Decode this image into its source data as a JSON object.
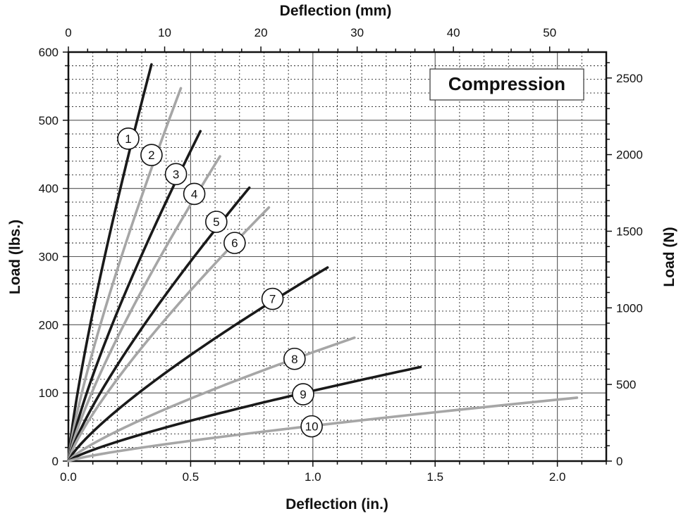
{
  "chart_data": {
    "type": "line",
    "legend_label": "Compression",
    "legend_position": "top-right",
    "xlabel_bottom": "Deflection (in.)",
    "xlabel_top": "Deflection (mm)",
    "ylabel_left": "Load (lbs.)",
    "ylabel_right": "Load (N)",
    "xlim_in": [
      0,
      2.2
    ],
    "ylim_lbs": [
      0,
      600
    ],
    "x_ticks_in": [
      "0.0",
      "0.5",
      "1.0",
      "1.5",
      "2.0"
    ],
    "y_ticks_lbs": [
      "0",
      "100",
      "200",
      "300",
      "400",
      "500",
      "600"
    ],
    "x_ticks_mm": [
      "0",
      "10",
      "20",
      "30",
      "40",
      "50"
    ],
    "y_ticks_N": [
      "0",
      "500",
      "1000",
      "1500",
      "2000",
      "2500"
    ],
    "grid": true,
    "colors": {
      "black_series": "#1a1a1a",
      "gray_series": "#a6a6a6"
    },
    "series": [
      {
        "name": "1",
        "label": "1",
        "color": "black",
        "end": [
          0.34,
          582
        ],
        "label_at": [
          0.245,
          473
        ]
      },
      {
        "name": "2",
        "label": "2",
        "color": "gray",
        "end": [
          0.46,
          547
        ],
        "label_at": [
          0.34,
          449
        ]
      },
      {
        "name": "3",
        "label": "3",
        "color": "black",
        "end": [
          0.54,
          484
        ],
        "label_at": [
          0.44,
          421
        ]
      },
      {
        "name": "4",
        "label": "4",
        "color": "gray",
        "end": [
          0.62,
          447
        ],
        "label_at": [
          0.515,
          392
        ]
      },
      {
        "name": "5",
        "label": "5",
        "color": "black",
        "end": [
          0.74,
          401
        ],
        "label_at": [
          0.605,
          351
        ]
      },
      {
        "name": "6",
        "label": "6",
        "color": "gray",
        "end": [
          0.82,
          372
        ],
        "label_at": [
          0.68,
          320
        ]
      },
      {
        "name": "7",
        "label": "7",
        "color": "black",
        "end": [
          1.06,
          284
        ],
        "label_at": [
          0.835,
          238
        ]
      },
      {
        "name": "8",
        "label": "8",
        "color": "gray",
        "end": [
          1.17,
          181
        ],
        "label_at": [
          0.925,
          150
        ]
      },
      {
        "name": "9",
        "label": "9",
        "color": "black",
        "end": [
          1.44,
          138
        ],
        "label_at": [
          0.96,
          98
        ]
      },
      {
        "name": "10",
        "label": "10",
        "color": "gray",
        "end": [
          2.08,
          93
        ],
        "label_at": [
          0.995,
          51
        ]
      }
    ]
  }
}
